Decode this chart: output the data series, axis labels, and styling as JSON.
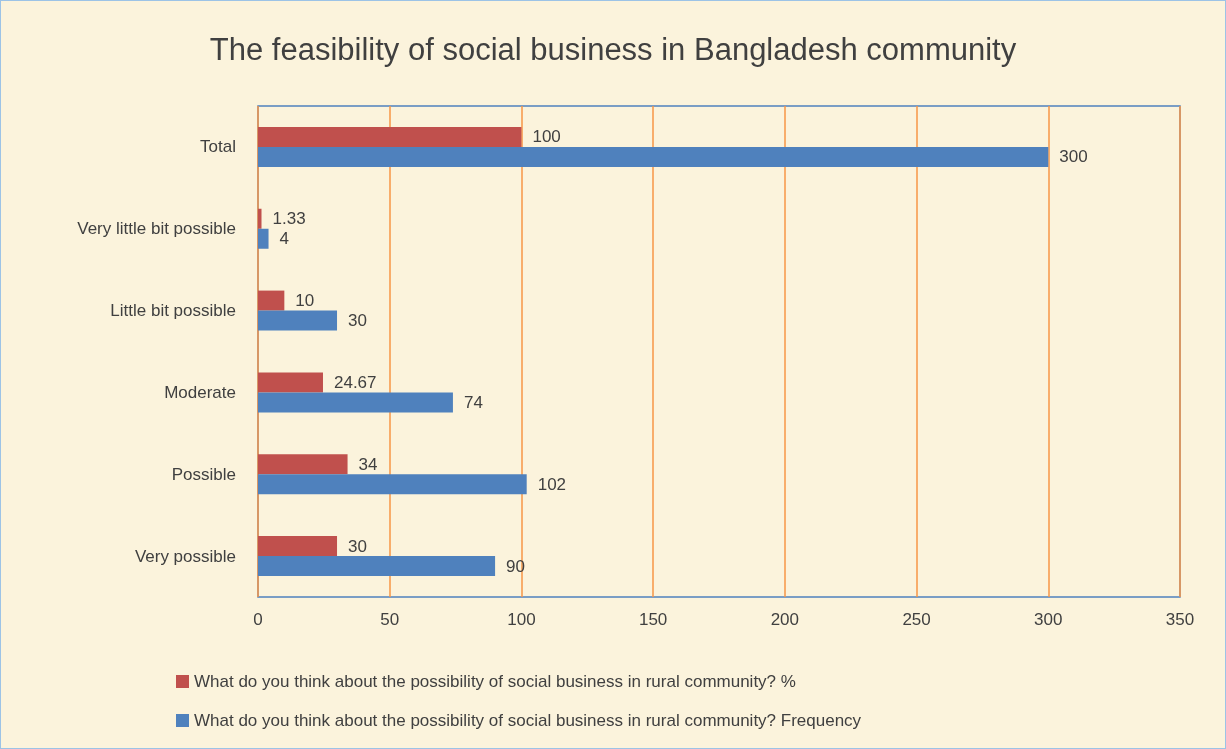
{
  "chart_data": {
    "type": "bar",
    "orientation": "horizontal",
    "title": "The feasibility of social business in Bangladesh community",
    "categories": [
      "Total",
      "Very little bit possible",
      "Little bit possible",
      "Moderate",
      "Possible",
      "Very possible"
    ],
    "series": [
      {
        "name": "What do you think about the possibility of social business in rural community? %",
        "color": "#c0504d",
        "values": [
          100,
          1.33,
          10,
          24.67,
          34,
          30
        ]
      },
      {
        "name": "What do you think about the possibility of social business in rural community? Frequency",
        "color": "#4f81bd",
        "values": [
          300,
          4,
          30,
          74,
          102,
          90
        ]
      }
    ],
    "xlim": [
      0,
      350
    ],
    "xticks": [
      0,
      50,
      100,
      150,
      200,
      250,
      300,
      350
    ],
    "grid": "x",
    "legend": "bottom",
    "data_labels": true
  }
}
